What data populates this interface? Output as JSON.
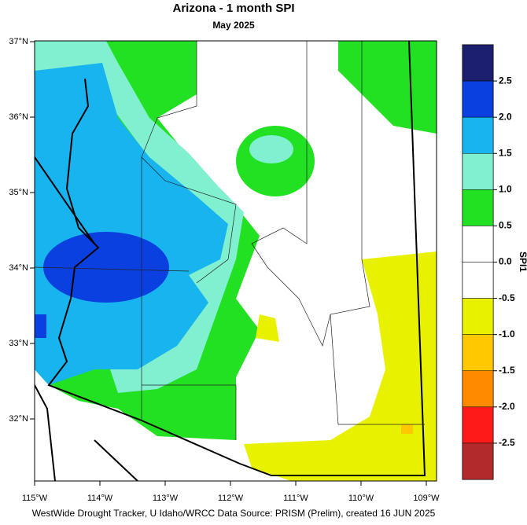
{
  "title": "Arizona - 1 month SPI",
  "subtitle": "May 2025",
  "lon_ticks": [
    {
      "value": -115,
      "label": "115°W"
    },
    {
      "value": -114,
      "label": "114°W"
    },
    {
      "value": -113,
      "label": "113°W"
    },
    {
      "value": -112,
      "label": "112°W"
    },
    {
      "value": -111,
      "label": "111°W"
    },
    {
      "value": -110,
      "label": "110°W"
    },
    {
      "value": -109,
      "label": "109°W"
    }
  ],
  "lat_ticks": [
    {
      "value": 37,
      "label": "37°N"
    },
    {
      "value": 36,
      "label": "36°N"
    },
    {
      "value": 35,
      "label": "35°N"
    },
    {
      "value": 34,
      "label": "34°N"
    },
    {
      "value": 33,
      "label": "33°N"
    },
    {
      "value": 32,
      "label": "32°N"
    }
  ],
  "colorbar": {
    "title": "SPI1",
    "colors": [
      "#1b1f6e",
      "#0a3fe0",
      "#17b4f0",
      "#80f0d0",
      "#22e022",
      "#ffffff",
      "#ffffff",
      "#e8f200",
      "#ffc800",
      "#ff8a00",
      "#ff1a1a",
      "#b22a2a"
    ],
    "ticks": [
      2.5,
      {
        "value": 2,
        "label": "2.0"
      },
      1.5,
      {
        "value": 1,
        "label": "1.0"
      },
      0.5,
      {
        "value": 0,
        "label": "0.0"
      },
      -0.5,
      {
        "value": -1,
        "label": "-1.0"
      },
      -1.5,
      {
        "value": -2,
        "label": "-2.0"
      },
      -2.5
    ]
  },
  "credit": "WestWide Drought Tracker, U Idaho/WRCC Data Source: PRISM (Prelim), created 16 JUN 2025"
}
